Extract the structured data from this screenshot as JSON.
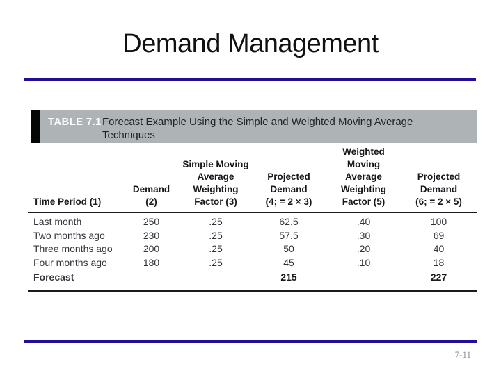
{
  "slide": {
    "title": "Demand Management",
    "page_number": "7-11",
    "accent_rule_color": "#1f0f9c",
    "table_bar_gray": "#aeb3b5",
    "table_bar_black": "#060606"
  },
  "table": {
    "tag": "TABLE 7.1",
    "caption": "Forecast Example Using the Simple and Weighted Moving Average\nTechniques",
    "columns": [
      "Time Period (1)",
      "Demand\n(2)",
      "Simple Moving\nAverage\nWeighting\nFactor (3)",
      "Projected\nDemand\n(4; = 2 × 3)",
      "Weighted\nMoving\nAverage\nWeighting\nFactor (5)",
      "Projected\nDemand\n(6; = 2 × 5)"
    ],
    "rows": [
      [
        "Last month",
        "250",
        ".25",
        "62.5",
        ".40",
        "100"
      ],
      [
        "Two months ago",
        "230",
        ".25",
        "57.5",
        ".30",
        "69"
      ],
      [
        "Three months ago",
        "200",
        ".25",
        "50",
        ".20",
        "40"
      ],
      [
        "Four months ago",
        "180",
        ".25",
        "45",
        ".10",
        "18"
      ]
    ],
    "footer_row": [
      "Forecast",
      "",
      "",
      "215",
      "",
      "227"
    ]
  }
}
